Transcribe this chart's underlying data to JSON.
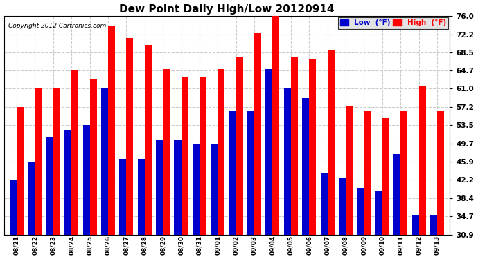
{
  "title": "Dew Point Daily High/Low 20120914",
  "copyright": "Copyright 2012 Cartronics.com",
  "categories": [
    "08/21",
    "08/22",
    "08/23",
    "08/24",
    "08/25",
    "08/26",
    "08/27",
    "08/28",
    "08/29",
    "08/30",
    "08/31",
    "09/01",
    "09/02",
    "09/03",
    "09/04",
    "09/05",
    "09/06",
    "09/07",
    "09/08",
    "09/09",
    "09/10",
    "09/11",
    "09/12",
    "09/13"
  ],
  "high_values": [
    57.2,
    61.0,
    61.0,
    64.7,
    63.0,
    74.0,
    71.5,
    70.0,
    65.0,
    63.5,
    63.5,
    65.0,
    67.5,
    72.5,
    76.5,
    67.5,
    67.0,
    69.0,
    57.5,
    56.5,
    55.0,
    56.5,
    61.5,
    56.5
  ],
  "low_values": [
    42.2,
    46.0,
    51.0,
    52.5,
    53.5,
    61.0,
    46.5,
    46.5,
    50.5,
    50.5,
    49.5,
    49.5,
    56.5,
    56.5,
    65.0,
    61.0,
    59.0,
    43.5,
    42.5,
    40.5,
    40.0,
    47.5,
    35.0,
    35.0
  ],
  "yticks": [
    30.9,
    34.7,
    38.4,
    42.2,
    45.9,
    49.7,
    53.5,
    57.2,
    61.0,
    64.7,
    68.5,
    72.2,
    76.0
  ],
  "ymin": 30.9,
  "ymax": 76.0,
  "high_color": "#ff0000",
  "low_color": "#0000cc",
  "bg_color": "#ffffff",
  "plot_bg_color": "#ffffff",
  "grid_color": "#cccccc",
  "bar_width": 0.38,
  "legend_low_label": "Low  (°F)",
  "legend_high_label": "High  (°F)"
}
